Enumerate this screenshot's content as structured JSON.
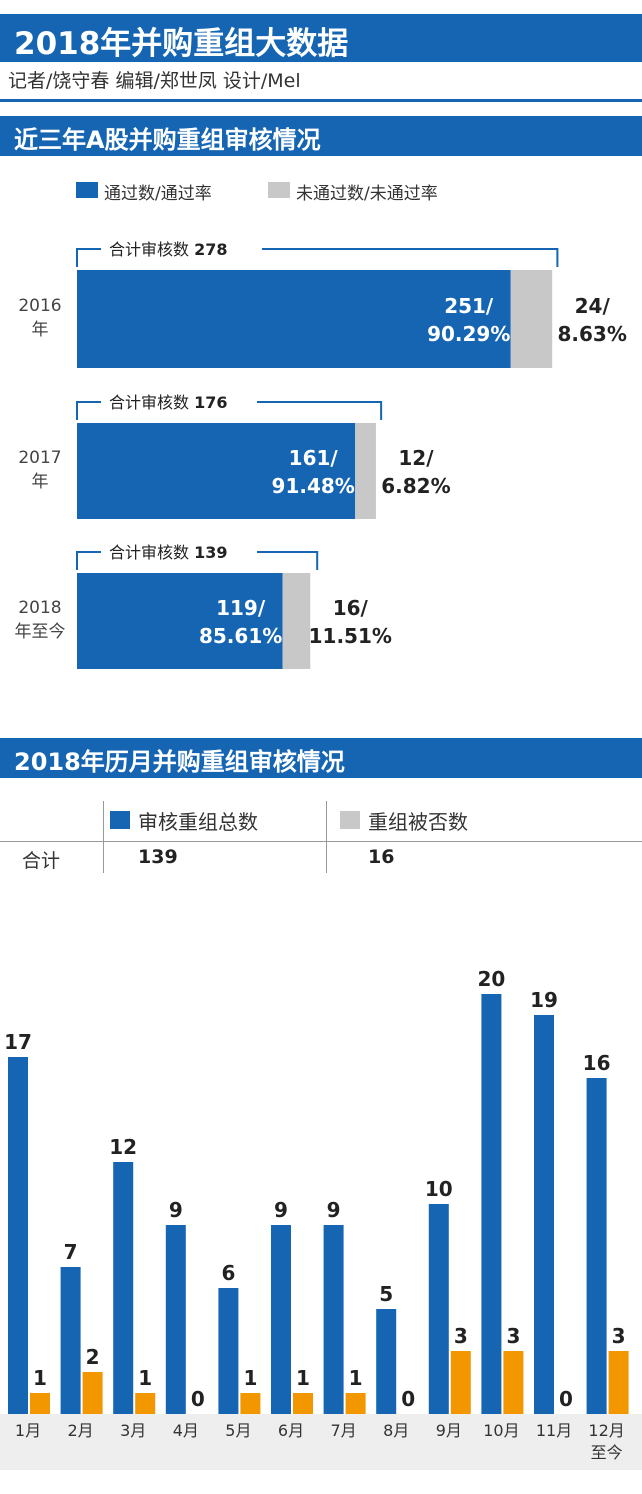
{
  "header": {
    "title": "2018年并购重组大数据",
    "credits": "记者/饶守春  编辑/郑世凤  设计/Mel"
  },
  "section1": {
    "title": "近三年A股并购重组审核情况",
    "legend": {
      "passed": "通过数/通过率",
      "failed": "未通过数/未通过率"
    }
  },
  "section2": {
    "title": "2018年历月并购重组审核情况",
    "legend": {
      "total": "审核重组总数",
      "rejected": "重组被否数"
    },
    "totals": {
      "row_label": "合计",
      "total_value": "139",
      "rejected_value": "16"
    }
  },
  "colors": {
    "blue": "#1565b3",
    "gray": "#c8c8c8",
    "orange": "#f29700"
  },
  "chart_data": [
    {
      "type": "bar",
      "orientation": "horizontal",
      "stacked": true,
      "title": "近三年A股并购重组审核情况",
      "categories": [
        "2016\n年",
        "2017\n年",
        "2018\n年至今"
      ],
      "totals": [
        {
          "label": "合计审核数",
          "value": 278
        },
        {
          "label": "合计审核数",
          "value": 176
        },
        {
          "label": "合计审核数",
          "value": 139
        }
      ],
      "series": [
        {
          "name": "通过数/通过率",
          "values": [
            251,
            161,
            119
          ],
          "labels": [
            "251/\n90.29%",
            "161/\n91.48%",
            "119/\n85.61%"
          ],
          "color": "#1565b3"
        },
        {
          "name": "未通过数/未通过率",
          "values": [
            24,
            12,
            16
          ],
          "labels": [
            "24/\n8.63%",
            "12/\n6.82%",
            "16/\n11.51%"
          ],
          "color": "#c8c8c8"
        }
      ]
    },
    {
      "type": "bar",
      "title": "2018年历月并购重组审核情况",
      "categories": [
        "1月",
        "2月",
        "3月",
        "4月",
        "5月",
        "6月",
        "7月",
        "8月",
        "9月",
        "10月",
        "11月",
        "12月\n至今"
      ],
      "series": [
        {
          "name": "审核重组总数",
          "values": [
            17,
            7,
            12,
            9,
            6,
            9,
            9,
            5,
            10,
            20,
            19,
            16
          ],
          "color": "#1565b3"
        },
        {
          "name": "重组被否数",
          "values": [
            1,
            2,
            1,
            0,
            1,
            1,
            1,
            0,
            3,
            3,
            0,
            3
          ],
          "color": "#f29700"
        }
      ]
    }
  ]
}
